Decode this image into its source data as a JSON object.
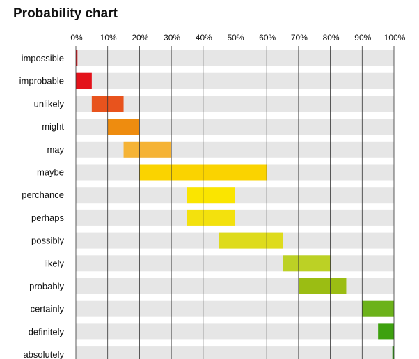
{
  "chart_data": {
    "type": "bar",
    "subtype": "floating-range-bar",
    "title": "Probability chart",
    "xlabel": "",
    "ylabel": "",
    "xlim": [
      0,
      100
    ],
    "x_tick_labels": [
      "0%",
      "10%",
      "20%",
      "30%",
      "40%",
      "50%",
      "60%",
      "70%",
      "80%",
      "90%",
      "100%"
    ],
    "x_ticks": [
      0,
      10,
      20,
      30,
      40,
      50,
      60,
      70,
      80,
      90,
      100
    ],
    "grid": true,
    "legend": "none",
    "categories": [
      "impossible",
      "improbable",
      "unlikely",
      "might",
      "may",
      "maybe",
      "perchance",
      "perhaps",
      "possibly",
      "likely",
      "probably",
      "certainly",
      "definitely",
      "absolutely"
    ],
    "ranges": [
      {
        "label": "impossible",
        "start": 0,
        "end": 0.5,
        "color": "#d7141a"
      },
      {
        "label": "improbable",
        "start": 0,
        "end": 5,
        "color": "#e3131b"
      },
      {
        "label": "unlikely",
        "start": 5,
        "end": 15,
        "color": "#e8531d"
      },
      {
        "label": "might",
        "start": 10,
        "end": 20,
        "color": "#ee8c0f"
      },
      {
        "label": "may",
        "start": 15,
        "end": 30,
        "color": "#f5b335"
      },
      {
        "label": "maybe",
        "start": 20,
        "end": 60,
        "color": "#fad300"
      },
      {
        "label": "perchance",
        "start": 35,
        "end": 50,
        "color": "#fae500"
      },
      {
        "label": "perhaps",
        "start": 35,
        "end": 50,
        "color": "#f3e10d"
      },
      {
        "label": "possibly",
        "start": 45,
        "end": 65,
        "color": "#dedb1c"
      },
      {
        "label": "likely",
        "start": 65,
        "end": 80,
        "color": "#bcd125"
      },
      {
        "label": "probably",
        "start": 70,
        "end": 85,
        "color": "#9bbd13"
      },
      {
        "label": "certainly",
        "start": 90,
        "end": 100,
        "color": "#6cb21a"
      },
      {
        "label": "definitely",
        "start": 95,
        "end": 100,
        "color": "#3ea10f"
      },
      {
        "label": "absolutely",
        "start": 99.5,
        "end": 100,
        "color": "#2e9a12"
      }
    ]
  }
}
